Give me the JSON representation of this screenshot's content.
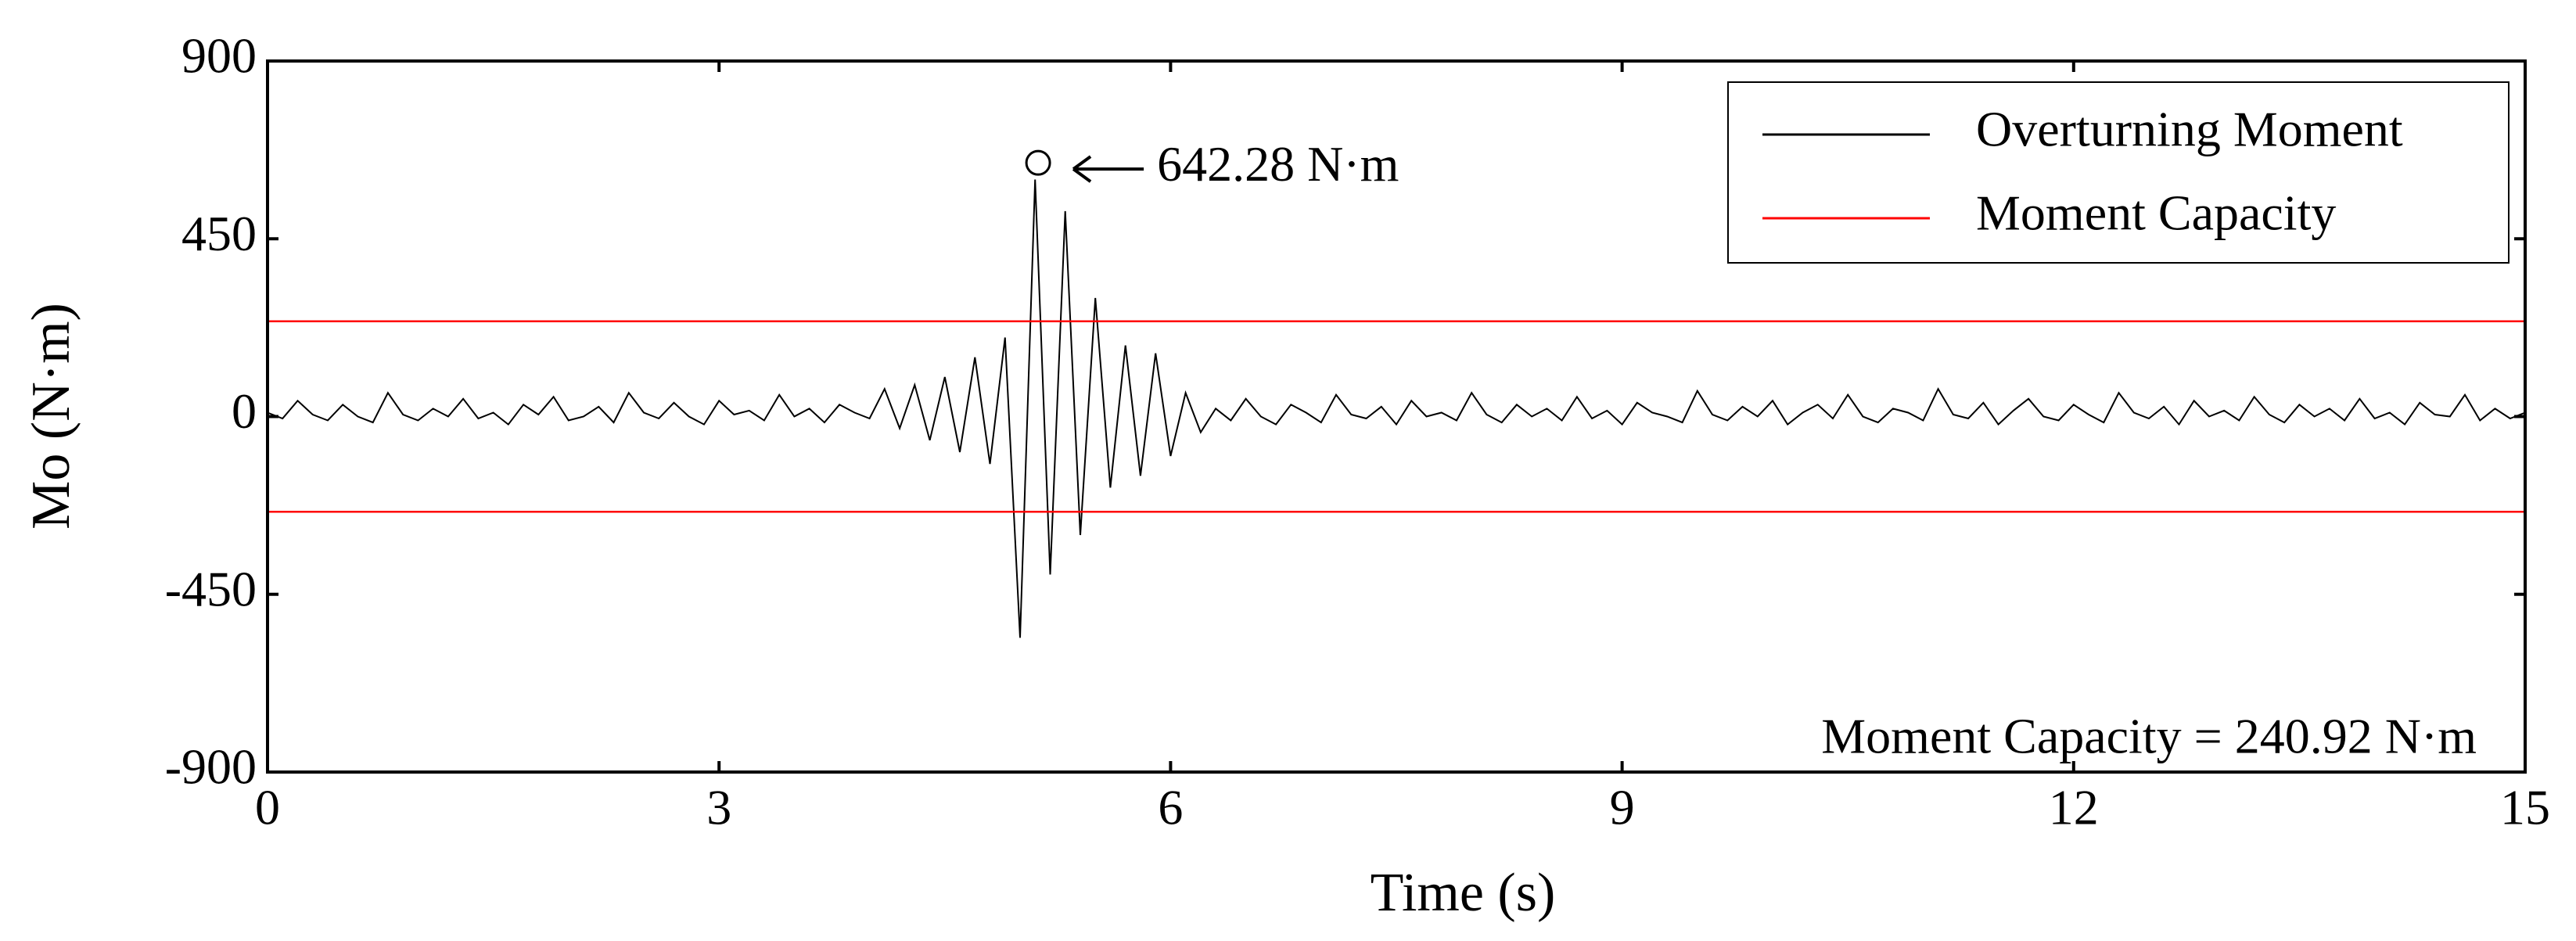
{
  "chart_data": {
    "type": "line",
    "xlabel": "Time (s)",
    "ylabel": "Mo (N·m)",
    "xlim": [
      0,
      15
    ],
    "xticks": [
      0,
      3,
      6,
      9,
      12,
      15
    ],
    "ylim": [
      -900,
      900
    ],
    "yticks": [
      -900,
      -450,
      0,
      450,
      900
    ],
    "grid": false,
    "legend": "upper right",
    "series": [
      {
        "name": "Overturning Moment",
        "color": "#000000",
        "x": [
          0,
          0.1,
          0.2,
          0.3,
          0.4,
          0.5,
          0.6,
          0.7,
          0.8,
          0.9,
          1,
          1.1,
          1.2,
          1.3,
          1.4,
          1.5,
          1.6,
          1.7,
          1.8,
          1.9,
          2,
          2.1,
          2.2,
          2.3,
          2.4,
          2.5,
          2.6,
          2.7,
          2.8,
          2.9,
          3,
          3.1,
          3.2,
          3.3,
          3.4,
          3.5,
          3.6,
          3.7,
          3.8,
          3.9,
          4,
          4.1,
          4.2,
          4.3,
          4.4,
          4.5,
          4.6,
          4.7,
          4.8,
          4.9,
          5,
          5.1,
          5.2,
          5.3,
          5.4,
          5.5,
          5.6,
          5.7,
          5.8,
          5.9,
          6,
          6.1,
          6.2,
          6.3,
          6.4,
          6.5,
          6.6,
          6.7,
          6.8,
          6.9,
          7,
          7.1,
          7.2,
          7.3,
          7.4,
          7.5,
          7.6,
          7.7,
          7.8,
          7.9,
          8,
          8.1,
          8.2,
          8.3,
          8.4,
          8.5,
          8.6,
          8.7,
          8.8,
          8.9,
          9,
          9.1,
          9.2,
          9.3,
          9.4,
          9.5,
          9.6,
          9.7,
          9.8,
          9.9,
          10,
          10.1,
          10.2,
          10.3,
          10.4,
          10.5,
          10.6,
          10.7,
          10.8,
          10.9,
          11,
          11.1,
          11.2,
          11.3,
          11.4,
          11.5,
          11.6,
          11.7,
          11.8,
          11.9,
          12,
          12.1,
          12.2,
          12.3,
          12.4,
          12.5,
          12.6,
          12.7,
          12.8,
          12.9,
          13,
          13.1,
          13.2,
          13.3,
          13.4,
          13.5,
          13.6,
          13.7,
          13.8,
          13.9,
          14,
          14.1,
          14.2,
          14.3,
          14.4,
          14.5,
          14.6,
          14.7,
          14.8,
          14.9,
          15
        ],
        "values": [
          10,
          -5,
          40,
          5,
          -10,
          30,
          0,
          -15,
          60,
          5,
          -10,
          20,
          0,
          45,
          -5,
          10,
          -20,
          30,
          5,
          50,
          -10,
          0,
          25,
          -15,
          60,
          10,
          -5,
          35,
          0,
          -20,
          40,
          5,
          15,
          -10,
          55,
          0,
          20,
          -15,
          30,
          10,
          -5,
          70,
          -30,
          80,
          -60,
          100,
          -90,
          150,
          -120,
          200,
          -560,
          600,
          -400,
          520,
          -300,
          300,
          -180,
          180,
          -150,
          160,
          -100,
          60,
          -40,
          20,
          -10,
          45,
          0,
          -20,
          30,
          10,
          -15,
          55,
          5,
          -5,
          25,
          -20,
          40,
          0,
          10,
          -10,
          60,
          5,
          -15,
          30,
          0,
          20,
          -10,
          50,
          -5,
          15,
          -20,
          35,
          10,
          0,
          -15,
          65,
          5,
          -10,
          25,
          0,
          40,
          -20,
          10,
          30,
          -5,
          55,
          0,
          -15,
          20,
          10,
          -10,
          70,
          5,
          -5,
          35,
          -20,
          15,
          45,
          0,
          -10,
          30,
          5,
          -15,
          60,
          10,
          -5,
          25,
          -20,
          40,
          0,
          15,
          -10,
          50,
          5,
          -15,
          30,
          0,
          20,
          -10,
          45,
          -5,
          10,
          -20,
          35,
          5,
          0,
          55,
          -10,
          20,
          -5,
          10
        ]
      },
      {
        "name": "Moment Capacity",
        "color": "#ff0000",
        "x": [
          0,
          15,
          7.5,
          0,
          15
        ],
        "values": [
          240.92,
          240.92,
          null,
          -240.92,
          -240.92
        ]
      }
    ],
    "annotations": [
      {
        "text": "642.28  N·m",
        "x": 5.12,
        "y": 642.28
      },
      {
        "text": "Moment Capacity =  240.92  N·m"
      }
    ]
  }
}
